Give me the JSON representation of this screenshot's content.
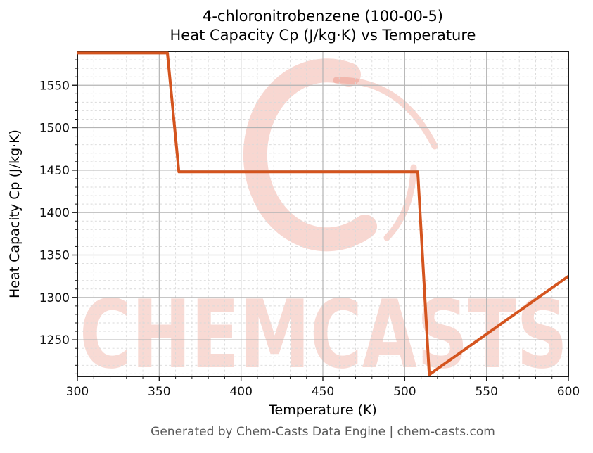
{
  "title": {
    "line1": "4-chloronitrobenzene (100-00-5)",
    "line2": "Heat Capacity Cp (J/kg·K) vs Temperature"
  },
  "axes": {
    "x_label": "Temperature (K)",
    "y_label": "Heat Capacity Cp (J/kg·K)"
  },
  "footer": {
    "text": "Generated by Chem-Casts Data Engine | chem-casts.com"
  },
  "watermark": {
    "text": "CHEMCASTS",
    "logo": "c-swirl-logo",
    "color": "#e04a2e",
    "text_opacity": 0.2,
    "logo_opacity": 0.22
  },
  "colors": {
    "line": "#d4541e",
    "major_grid": "#b4b4b4",
    "minor_grid": "#d9d9d9",
    "axis_border": "#1a1a1a",
    "tick_label": "#111111",
    "footer_text": "#595959"
  },
  "chart_data": {
    "type": "line",
    "title": "4-chloronitrobenzene (100-00-5) — Heat Capacity Cp (J/kg·K) vs Temperature",
    "xlabel": "Temperature (K)",
    "ylabel": "Heat Capacity Cp (J/kg·K)",
    "xlim": [
      300,
      600
    ],
    "ylim": [
      1207,
      1590
    ],
    "xticks": [
      300,
      350,
      400,
      450,
      500,
      550,
      600
    ],
    "yticks": [
      1250,
      1300,
      1350,
      1400,
      1450,
      1500,
      1550
    ],
    "minor_step_x": 10,
    "minor_step_y": 10,
    "grid": {
      "major": "solid",
      "minor": "dashed"
    },
    "legend": null,
    "series": [
      {
        "name": "Heat Capacity Cp (J/kg·K)",
        "color": "#d4541e",
        "points": [
          [
            300,
            1588
          ],
          [
            355,
            1588
          ],
          [
            362,
            1448
          ],
          [
            508,
            1448
          ],
          [
            515,
            1209
          ],
          [
            600,
            1325
          ]
        ]
      }
    ]
  }
}
